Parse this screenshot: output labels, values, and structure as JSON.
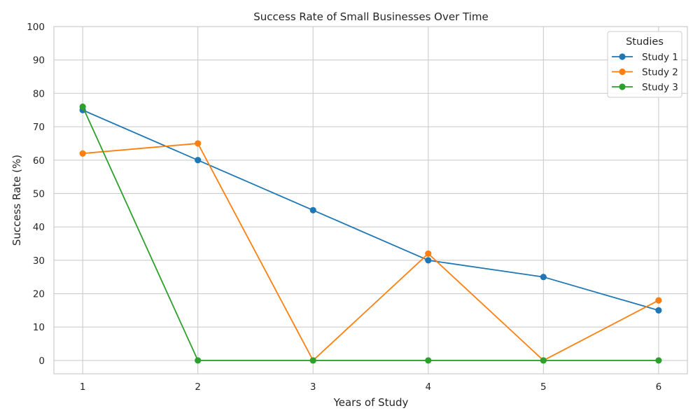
{
  "chart_data": {
    "type": "line",
    "title": "Success Rate of Small Businesses Over Time",
    "xlabel": "Years of Study",
    "ylabel": "Success Rate (%)",
    "x": [
      1,
      2,
      3,
      4,
      5,
      6
    ],
    "xticks": [
      "1",
      "2",
      "3",
      "4",
      "5",
      "6"
    ],
    "yticks": [
      "0",
      "10",
      "20",
      "30",
      "40",
      "50",
      "60",
      "70",
      "80",
      "90",
      "100"
    ],
    "xlim": [
      0.75,
      6.25
    ],
    "ylim": [
      -4,
      100
    ],
    "grid": true,
    "legend": {
      "title": "Studies",
      "position": "top-right"
    },
    "series": [
      {
        "name": "Study 1",
        "color": "#1f77b4",
        "values": [
          75,
          60,
          45,
          30,
          25,
          15
        ]
      },
      {
        "name": "Study 2",
        "color": "#ff7f0e",
        "values": [
          62,
          65,
          0,
          32,
          0,
          18
        ]
      },
      {
        "name": "Study 3",
        "color": "#2ca02c",
        "values": [
          76,
          0,
          0,
          0,
          0,
          0
        ]
      }
    ]
  }
}
